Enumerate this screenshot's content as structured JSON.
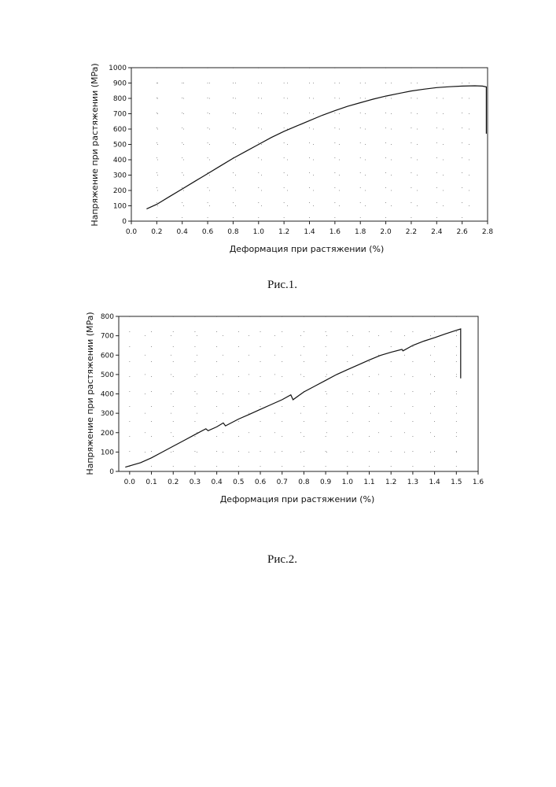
{
  "chart_data": [
    {
      "type": "line",
      "xlabel": "Деформация при растяжении (%)",
      "ylabel": "Напряжение при растяжении (MPa)",
      "xlim": [
        0,
        2.8
      ],
      "ylim": [
        0,
        1000
      ],
      "x_ticks": [
        "0.0",
        "0.2",
        "0.4",
        "0.6",
        "0.8",
        "1.0",
        "1.2",
        "1.4",
        "1.6",
        "1.8",
        "2.0",
        "2.2",
        "2.4",
        "2.6",
        "2.8"
      ],
      "y_ticks": [
        "0",
        "100",
        "200",
        "300",
        "400",
        "500",
        "600",
        "700",
        "800",
        "900",
        "1000"
      ],
      "grid": "dotted",
      "legend": "none",
      "series": [
        {
          "x": [
            0.12,
            0.2,
            0.3,
            0.4,
            0.5,
            0.6,
            0.7,
            0.8,
            0.9,
            1.0,
            1.1,
            1.2,
            1.3,
            1.4,
            1.5,
            1.6,
            1.7,
            1.8,
            1.9,
            2.0,
            2.1,
            2.2,
            2.3,
            2.4,
            2.5,
            2.6,
            2.7,
            2.76,
            2.79,
            2.79
          ],
          "y": [
            80,
            110,
            160,
            210,
            260,
            310,
            360,
            410,
            455,
            500,
            545,
            585,
            620,
            655,
            690,
            720,
            748,
            772,
            795,
            815,
            832,
            848,
            860,
            870,
            876,
            880,
            882,
            880,
            875,
            570
          ]
        }
      ]
    },
    {
      "type": "line",
      "xlabel": "Деформация при растяжении (%)",
      "ylabel": "Напряжение при растяжении (MPa)",
      "xlim": [
        -0.05,
        1.6
      ],
      "ylim": [
        0,
        800
      ],
      "x_ticks": [
        "0.0",
        "0.1",
        "0.2",
        "0.3",
        "0.4",
        "0.5",
        "0.6",
        "0.7",
        "0.8",
        "0.9",
        "1.0",
        "1.1",
        "1.2",
        "1.3",
        "1.4",
        "1.5",
        "1.6"
      ],
      "y_ticks": [
        "0",
        "100",
        "200",
        "300",
        "400",
        "500",
        "600",
        "700",
        "800"
      ],
      "grid": "dotted",
      "legend": "none",
      "series": [
        {
          "x": [
            -0.02,
            0.05,
            0.1,
            0.15,
            0.2,
            0.25,
            0.3,
            0.35,
            0.36,
            0.4,
            0.43,
            0.44,
            0.5,
            0.55,
            0.6,
            0.65,
            0.7,
            0.74,
            0.75,
            0.8,
            0.85,
            0.9,
            0.95,
            1.0,
            1.05,
            1.1,
            1.15,
            1.2,
            1.25,
            1.255,
            1.3,
            1.35,
            1.4,
            1.45,
            1.5,
            1.52,
            1.52
          ],
          "y": [
            22,
            45,
            70,
            100,
            130,
            160,
            190,
            220,
            210,
            230,
            250,
            235,
            270,
            295,
            320,
            345,
            370,
            395,
            370,
            410,
            440,
            470,
            500,
            525,
            550,
            575,
            598,
            615,
            630,
            622,
            650,
            672,
            690,
            710,
            728,
            735,
            480
          ]
        }
      ]
    }
  ],
  "captions": [
    "Рис.1.",
    "Рис.2."
  ]
}
